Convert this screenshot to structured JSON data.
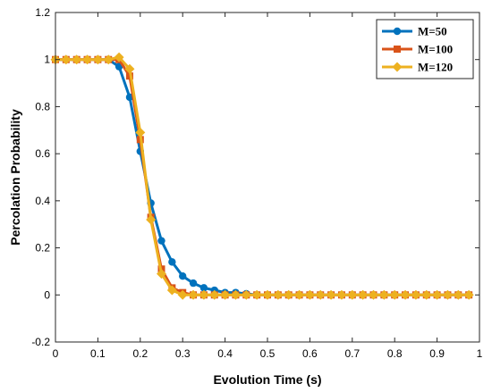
{
  "chart_data": {
    "type": "line",
    "xlabel": "Evolution Time (s)",
    "ylabel": "Percolation Probability",
    "xlim": [
      0,
      1
    ],
    "ylim": [
      -0.2,
      1.2
    ],
    "xticks": [
      0,
      0.1,
      0.2,
      0.3,
      0.4,
      0.5,
      0.6,
      0.7,
      0.8,
      0.9,
      1
    ],
    "xtick_labels": [
      "0",
      "0.1",
      "0.2",
      "0.3",
      "0.4",
      "0.5",
      "0.6",
      "0.7",
      "0.8",
      "0.9",
      "1"
    ],
    "yticks": [
      -0.2,
      0,
      0.2,
      0.4,
      0.6,
      0.8,
      1,
      1.2
    ],
    "ytick_labels": [
      "-0.2",
      "0",
      "0.2",
      "0.4",
      "0.6",
      "0.8",
      "1",
      "1.2"
    ],
    "grid": false,
    "legend_position": "top-right",
    "x": [
      0,
      0.025,
      0.05,
      0.075,
      0.1,
      0.125,
      0.15,
      0.175,
      0.2,
      0.225,
      0.25,
      0.275,
      0.3,
      0.325,
      0.35,
      0.375,
      0.4,
      0.425,
      0.45,
      0.475,
      0.5,
      0.525,
      0.55,
      0.575,
      0.6,
      0.625,
      0.65,
      0.675,
      0.7,
      0.725,
      0.75,
      0.775,
      0.8,
      0.825,
      0.85,
      0.875,
      0.9,
      0.925,
      0.95,
      0.975
    ],
    "series": [
      {
        "name": "M=50",
        "color": "#0072BD",
        "marker": "circle",
        "values": [
          1,
          1,
          1,
          1,
          1,
          1,
          0.97,
          0.84,
          0.61,
          0.39,
          0.23,
          0.14,
          0.08,
          0.05,
          0.03,
          0.02,
          0.01,
          0.01,
          0.005,
          0,
          0,
          0,
          0,
          0,
          0,
          0,
          0,
          0,
          0,
          0,
          0,
          0,
          0,
          0,
          0,
          0,
          0,
          0,
          0,
          0
        ]
      },
      {
        "name": "M=100",
        "color": "#D95319",
        "marker": "square",
        "values": [
          1,
          1,
          1,
          1,
          1,
          1,
          1,
          0.93,
          0.66,
          0.33,
          0.11,
          0.03,
          0.01,
          0,
          0,
          0,
          0,
          0,
          0,
          0,
          0,
          0,
          0,
          0,
          0,
          0,
          0,
          0,
          0,
          0,
          0,
          0,
          0,
          0,
          0,
          0,
          0,
          0,
          0,
          0
        ]
      },
      {
        "name": "M=120",
        "color": "#EDB120",
        "marker": "diamond",
        "values": [
          1,
          1,
          1,
          1,
          1,
          1,
          1.01,
          0.96,
          0.69,
          0.32,
          0.09,
          0.02,
          0,
          0,
          0,
          0,
          0,
          0,
          0,
          0,
          0,
          0,
          0,
          0,
          0,
          0,
          0,
          0,
          0,
          0,
          0,
          0,
          0,
          0,
          0,
          0,
          0,
          0,
          0,
          0
        ]
      }
    ]
  }
}
